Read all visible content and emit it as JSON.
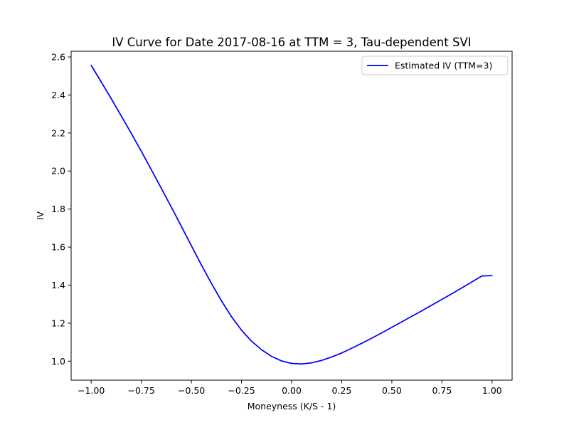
{
  "chart_data": {
    "type": "line",
    "title": "IV Curve for Date 2017-08-16 at TTM = 3, Tau-dependent SVI",
    "xlabel": "Moneyness (K/S - 1)",
    "ylabel": "IV",
    "xlim": [
      -1.1,
      1.1
    ],
    "ylim": [
      0.9,
      2.63
    ],
    "x_ticks": [
      -1.0,
      -0.75,
      -0.5,
      -0.25,
      0.0,
      0.25,
      0.5,
      0.75,
      1.0
    ],
    "x_tick_labels": [
      "−1.00",
      "−0.75",
      "−0.50",
      "−0.25",
      "0.00",
      "0.25",
      "0.50",
      "0.75",
      "1.00"
    ],
    "y_ticks": [
      1.0,
      1.2,
      1.4,
      1.6,
      1.8,
      2.0,
      2.2,
      2.4,
      2.6
    ],
    "y_tick_labels": [
      "1.0",
      "1.2",
      "1.4",
      "1.6",
      "1.8",
      "2.0",
      "2.2",
      "2.4",
      "2.6"
    ],
    "grid": false,
    "legend_position": "top-right",
    "series": [
      {
        "name": "Estimated IV (TTM=3)",
        "color": "#0000ff",
        "x": [
          -1.0,
          -0.95,
          -0.9,
          -0.85,
          -0.8,
          -0.75,
          -0.7,
          -0.65,
          -0.6,
          -0.55,
          -0.5,
          -0.45,
          -0.4,
          -0.35,
          -0.3,
          -0.25,
          -0.2,
          -0.15,
          -0.1,
          -0.05,
          0.0,
          0.05,
          0.1,
          0.15,
          0.2,
          0.25,
          0.3,
          0.35,
          0.4,
          0.45,
          0.5,
          0.55,
          0.6,
          0.65,
          0.7,
          0.75,
          0.8,
          0.85,
          0.9,
          0.95,
          1.0
        ],
        "y": [
          2.556,
          2.469,
          2.381,
          2.29,
          2.198,
          2.104,
          2.007,
          1.909,
          1.81,
          1.709,
          1.607,
          1.506,
          1.409,
          1.317,
          1.234,
          1.163,
          1.105,
          1.06,
          1.025,
          1.001,
          0.988,
          0.985,
          0.991,
          1.004,
          1.022,
          1.043,
          1.068,
          1.094,
          1.121,
          1.149,
          1.178,
          1.207,
          1.236,
          1.265,
          1.295,
          1.325,
          1.355,
          1.386,
          1.417,
          1.448,
          1.45
        ]
      }
    ]
  }
}
